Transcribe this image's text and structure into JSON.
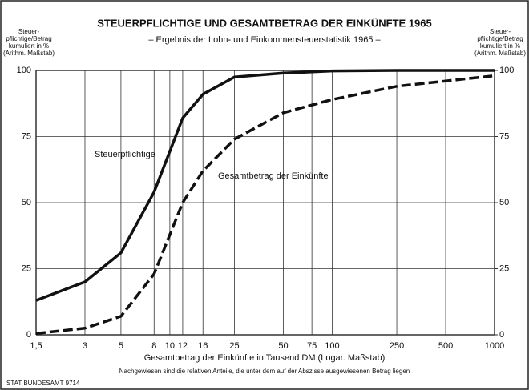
{
  "chart_data": {
    "type": "line",
    "title": "STEUERPFLICHTIGE UND GESAMTBETRAG DER EINKÜNFTE 1965",
    "subtitle": "– Ergebnis der Lohn- und Einkommensteuerstatistik 1965 –",
    "y_label": [
      "Steuer-",
      "pflichtige/Betrag",
      "kumuliert in %",
      "(Arithm. Maßstab)"
    ],
    "y2_label": [
      "Steuer-",
      "pflichtige/Betrag",
      "kumuliert in %",
      "(Arithm. Maßstab)"
    ],
    "x_label": "Gesamtbetrag der Einkünfte in Tausend DM (Logar. Maßstab)",
    "footnote": "Nachgewiesen sind die relativen Anteile, die unter dem auf der Abszisse ausgewiesenen Betrag liegen",
    "source": "STAT BUNDESAMT 9714",
    "x_scale": "log",
    "xlim": [
      1.5,
      1000
    ],
    "xticks": [
      {
        "value": 1.5,
        "label": "1,5"
      },
      3,
      5,
      8,
      10,
      12,
      16,
      25,
      50,
      75,
      100,
      250,
      500,
      1000
    ],
    "ylim": [
      0,
      100
    ],
    "yticks": [
      0,
      25,
      50,
      75,
      100
    ],
    "y2lim": [
      0,
      100
    ],
    "y2ticks": [
      0,
      25,
      50,
      75,
      100
    ],
    "grid": true,
    "x": [
      1.5,
      3,
      5,
      8,
      12,
      16,
      25,
      50,
      100,
      250,
      500,
      1000
    ],
    "series": [
      {
        "name": "Steuerpflichtige",
        "color": "#111111",
        "dashed": false,
        "values": [
          13,
          20,
          31,
          54,
          82,
          91,
          97.5,
          99,
          99.8,
          100,
          100,
          100
        ]
      },
      {
        "name": "Gesamtbetrag der Einkünfte",
        "color": "#111111",
        "dashed": true,
        "values": [
          0.5,
          2.5,
          7,
          23,
          50,
          62,
          74,
          84,
          89,
          94,
          96,
          98
        ]
      }
    ]
  }
}
